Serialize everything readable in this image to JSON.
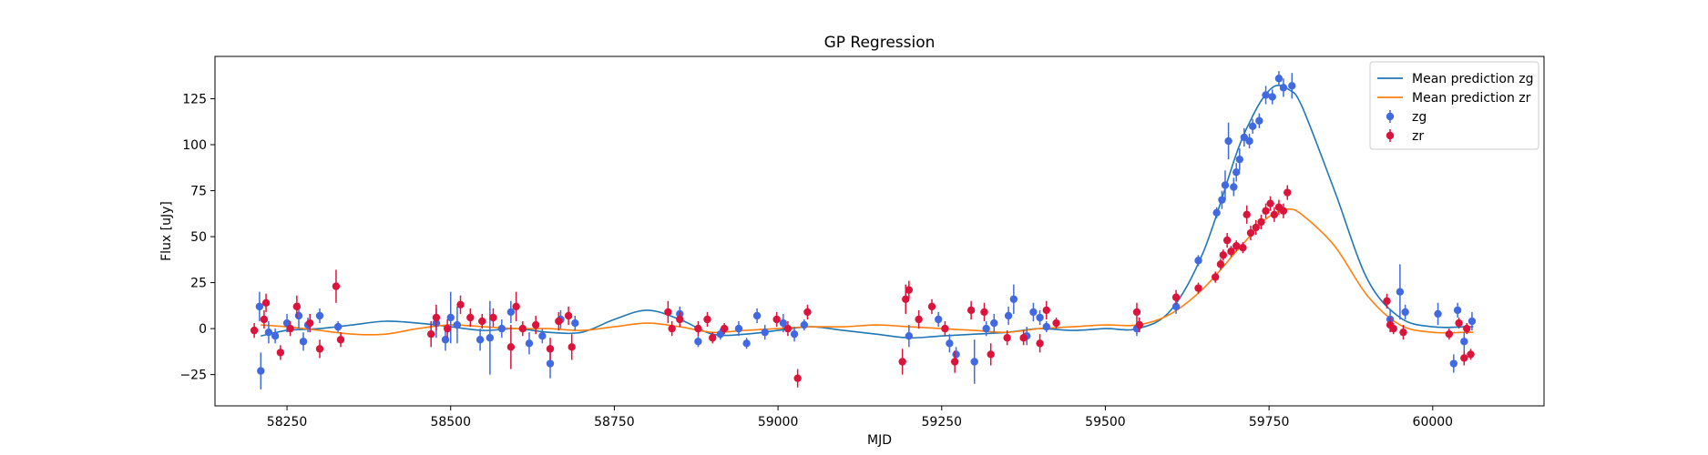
{
  "chart_data": {
    "type": "scatter",
    "title": "GP Regression",
    "xlabel": "MJD",
    "ylabel": "Flux [uJy]",
    "xlim": [
      58140,
      60170
    ],
    "ylim": [
      -42,
      148
    ],
    "xticks": [
      58250,
      58500,
      58750,
      59000,
      59250,
      59500,
      59750,
      60000
    ],
    "yticks": [
      -25,
      0,
      25,
      50,
      75,
      100,
      125
    ],
    "grid": false,
    "legend_position": "top-right",
    "series": [
      {
        "name": "Mean prediction zg",
        "kind": "line",
        "color": "#1f77b4",
        "x": [
          58210,
          58250,
          58300,
          58350,
          58400,
          58450,
          58500,
          58550,
          58600,
          58650,
          58700,
          58750,
          58800,
          58850,
          58900,
          58950,
          59000,
          59050,
          59100,
          59150,
          59200,
          59250,
          59300,
          59350,
          59400,
          59450,
          59500,
          59550,
          59600,
          59650,
          59700,
          59720,
          59740,
          59760,
          59780,
          59800,
          59850,
          59900,
          59950,
          60000,
          60050,
          60062
        ],
        "y": [
          -4,
          -1,
          0,
          2,
          4,
          3,
          1,
          -1,
          0,
          -2,
          -2,
          5,
          10,
          5,
          -3,
          -3,
          -1,
          1,
          -1,
          -3,
          -5,
          -4,
          -3,
          -2,
          0,
          -1,
          0,
          0,
          10,
          42,
          95,
          112,
          125,
          132,
          130,
          121,
          75,
          27,
          6,
          1,
          1,
          1
        ]
      },
      {
        "name": "Mean prediction zr",
        "kind": "line",
        "color": "#ff7f0e",
        "x": [
          58210,
          58250,
          58300,
          58350,
          58400,
          58450,
          58500,
          58550,
          58600,
          58650,
          58700,
          58750,
          58800,
          58850,
          58900,
          58950,
          59000,
          59050,
          59100,
          59150,
          59200,
          59250,
          59300,
          59350,
          59400,
          59450,
          59500,
          59550,
          59600,
          59650,
          59700,
          59720,
          59740,
          59760,
          59780,
          59800,
          59850,
          59900,
          59950,
          60000,
          60050,
          60062
        ],
        "y": [
          2,
          1,
          -1,
          -3,
          -3,
          0,
          2,
          1,
          0,
          0,
          -1,
          1,
          3,
          1,
          -2,
          -1,
          0,
          1,
          1,
          2,
          1,
          0,
          -1,
          -2,
          0,
          1,
          2,
          2,
          8,
          22,
          42,
          50,
          58,
          63,
          65,
          62,
          45,
          18,
          2,
          -2,
          -2,
          -2
        ]
      },
      {
        "name": "zg",
        "kind": "errorbar",
        "color": "#4169e1",
        "points": [
          {
            "x": 58208,
            "y": 12,
            "err": 8
          },
          {
            "x": 58210,
            "y": -23,
            "err": 10
          },
          {
            "x": 58222,
            "y": -2,
            "err": 6
          },
          {
            "x": 58232,
            "y": -4,
            "err": 4
          },
          {
            "x": 58250,
            "y": 3,
            "err": 5
          },
          {
            "x": 58268,
            "y": 7,
            "err": 7
          },
          {
            "x": 58275,
            "y": -7,
            "err": 5
          },
          {
            "x": 58282,
            "y": 2,
            "err": 4
          },
          {
            "x": 58300,
            "y": 7,
            "err": 4
          },
          {
            "x": 58328,
            "y": 1,
            "err": 3
          },
          {
            "x": 58478,
            "y": 3,
            "err": 8
          },
          {
            "x": 58492,
            "y": -6,
            "err": 6
          },
          {
            "x": 58500,
            "y": 6,
            "err": 14
          },
          {
            "x": 58510,
            "y": 2,
            "err": 10
          },
          {
            "x": 58545,
            "y": -6,
            "err": 6
          },
          {
            "x": 58560,
            "y": -5,
            "err": 20
          },
          {
            "x": 58578,
            "y": 0,
            "err": 5
          },
          {
            "x": 58592,
            "y": 9,
            "err": 6
          },
          {
            "x": 58620,
            "y": -8,
            "err": 6
          },
          {
            "x": 58640,
            "y": -4,
            "err": 4
          },
          {
            "x": 58652,
            "y": -19,
            "err": 8
          },
          {
            "x": 58668,
            "y": 5,
            "err": 5
          },
          {
            "x": 58690,
            "y": 3,
            "err": 4
          },
          {
            "x": 58850,
            "y": 8,
            "err": 4
          },
          {
            "x": 58878,
            "y": -7,
            "err": 3
          },
          {
            "x": 58912,
            "y": -3,
            "err": 3
          },
          {
            "x": 58940,
            "y": 0,
            "err": 4
          },
          {
            "x": 58952,
            "y": -8,
            "err": 3
          },
          {
            "x": 58968,
            "y": 7,
            "err": 4
          },
          {
            "x": 58980,
            "y": -2,
            "err": 4
          },
          {
            "x": 59008,
            "y": 3,
            "err": 5
          },
          {
            "x": 59025,
            "y": -3,
            "err": 4
          },
          {
            "x": 59040,
            "y": 2,
            "err": 3
          },
          {
            "x": 59200,
            "y": -4,
            "err": 6
          },
          {
            "x": 59245,
            "y": 5,
            "err": 4
          },
          {
            "x": 59262,
            "y": -8,
            "err": 5
          },
          {
            "x": 59272,
            "y": -14,
            "err": 4
          },
          {
            "x": 59300,
            "y": -18,
            "err": 12
          },
          {
            "x": 59318,
            "y": 0,
            "err": 4
          },
          {
            "x": 59330,
            "y": 3,
            "err": 5
          },
          {
            "x": 59352,
            "y": 7,
            "err": 5
          },
          {
            "x": 59360,
            "y": 16,
            "err": 8
          },
          {
            "x": 59380,
            "y": -4,
            "err": 5
          },
          {
            "x": 59390,
            "y": 9,
            "err": 5
          },
          {
            "x": 59400,
            "y": 6,
            "err": 4
          },
          {
            "x": 59410,
            "y": 1,
            "err": 3
          },
          {
            "x": 59548,
            "y": 0,
            "err": 4
          },
          {
            "x": 59608,
            "y": 12,
            "err": 4
          },
          {
            "x": 59642,
            "y": 37,
            "err": 3
          },
          {
            "x": 59670,
            "y": 63,
            "err": 3
          },
          {
            "x": 59678,
            "y": 70,
            "err": 5
          },
          {
            "x": 59683,
            "y": 78,
            "err": 8
          },
          {
            "x": 59688,
            "y": 102,
            "err": 10
          },
          {
            "x": 59696,
            "y": 77,
            "err": 5
          },
          {
            "x": 59700,
            "y": 85,
            "err": 5
          },
          {
            "x": 59705,
            "y": 92,
            "err": 6
          },
          {
            "x": 59712,
            "y": 104,
            "err": 5
          },
          {
            "x": 59720,
            "y": 102,
            "err": 4
          },
          {
            "x": 59725,
            "y": 110,
            "err": 4
          },
          {
            "x": 59735,
            "y": 113,
            "err": 4
          },
          {
            "x": 59745,
            "y": 127,
            "err": 5
          },
          {
            "x": 59755,
            "y": 126,
            "err": 4
          },
          {
            "x": 59765,
            "y": 136,
            "err": 4
          },
          {
            "x": 59772,
            "y": 131,
            "err": 5
          },
          {
            "x": 59785,
            "y": 132,
            "err": 7
          },
          {
            "x": 59935,
            "y": 5,
            "err": 5
          },
          {
            "x": 59950,
            "y": 20,
            "err": 15
          },
          {
            "x": 59958,
            "y": 9,
            "err": 4
          },
          {
            "x": 60008,
            "y": 8,
            "err": 6
          },
          {
            "x": 60032,
            "y": -19,
            "err": 5
          },
          {
            "x": 60038,
            "y": 10,
            "err": 4
          },
          {
            "x": 60048,
            "y": -7,
            "err": 5
          },
          {
            "x": 60060,
            "y": 4,
            "err": 5
          }
        ]
      },
      {
        "name": "zr",
        "kind": "errorbar",
        "color": "#dc143c",
        "points": [
          {
            "x": 58200,
            "y": -1,
            "err": 4
          },
          {
            "x": 58215,
            "y": 5,
            "err": 5
          },
          {
            "x": 58218,
            "y": 14,
            "err": 5
          },
          {
            "x": 58240,
            "y": -13,
            "err": 4
          },
          {
            "x": 58255,
            "y": 0,
            "err": 4
          },
          {
            "x": 58265,
            "y": 12,
            "err": 6
          },
          {
            "x": 58285,
            "y": 3,
            "err": 5
          },
          {
            "x": 58300,
            "y": -11,
            "err": 5
          },
          {
            "x": 58325,
            "y": 23,
            "err": 9
          },
          {
            "x": 58332,
            "y": -6,
            "err": 4
          },
          {
            "x": 58470,
            "y": -3,
            "err": 7
          },
          {
            "x": 58478,
            "y": 6,
            "err": 7
          },
          {
            "x": 58495,
            "y": 0,
            "err": 5
          },
          {
            "x": 58515,
            "y": 13,
            "err": 5
          },
          {
            "x": 58530,
            "y": 6,
            "err": 5
          },
          {
            "x": 58548,
            "y": 4,
            "err": 4
          },
          {
            "x": 58565,
            "y": 6,
            "err": 5
          },
          {
            "x": 58592,
            "y": -10,
            "err": 12
          },
          {
            "x": 58600,
            "y": 12,
            "err": 8
          },
          {
            "x": 58610,
            "y": 0,
            "err": 4
          },
          {
            "x": 58630,
            "y": 2,
            "err": 5
          },
          {
            "x": 58652,
            "y": -11,
            "err": 6
          },
          {
            "x": 58665,
            "y": 4,
            "err": 5
          },
          {
            "x": 58680,
            "y": 7,
            "err": 5
          },
          {
            "x": 58685,
            "y": -10,
            "err": 7
          },
          {
            "x": 58832,
            "y": 9,
            "err": 6
          },
          {
            "x": 58838,
            "y": 0,
            "err": 4
          },
          {
            "x": 58850,
            "y": 5,
            "err": 4
          },
          {
            "x": 58878,
            "y": 0,
            "err": 4
          },
          {
            "x": 58892,
            "y": 5,
            "err": 4
          },
          {
            "x": 58900,
            "y": -5,
            "err": 3
          },
          {
            "x": 58918,
            "y": 0,
            "err": 3
          },
          {
            "x": 58998,
            "y": 5,
            "err": 4
          },
          {
            "x": 59015,
            "y": 0,
            "err": 4
          },
          {
            "x": 59030,
            "y": -27,
            "err": 5
          },
          {
            "x": 59045,
            "y": 9,
            "err": 4
          },
          {
            "x": 59190,
            "y": -18,
            "err": 7
          },
          {
            "x": 59195,
            "y": 16,
            "err": 8
          },
          {
            "x": 59200,
            "y": 21,
            "err": 5
          },
          {
            "x": 59215,
            "y": 5,
            "err": 5
          },
          {
            "x": 59235,
            "y": 12,
            "err": 4
          },
          {
            "x": 59255,
            "y": 0,
            "err": 4
          },
          {
            "x": 59270,
            "y": -18,
            "err": 6
          },
          {
            "x": 59295,
            "y": 10,
            "err": 5
          },
          {
            "x": 59315,
            "y": 9,
            "err": 5
          },
          {
            "x": 59325,
            "y": -14,
            "err": 6
          },
          {
            "x": 59350,
            "y": -5,
            "err": 4
          },
          {
            "x": 59375,
            "y": -5,
            "err": 4
          },
          {
            "x": 59400,
            "y": -8,
            "err": 5
          },
          {
            "x": 59410,
            "y": 10,
            "err": 5
          },
          {
            "x": 59425,
            "y": 3,
            "err": 3
          },
          {
            "x": 59548,
            "y": 9,
            "err": 5
          },
          {
            "x": 59552,
            "y": 2,
            "err": 4
          },
          {
            "x": 59608,
            "y": 17,
            "err": 4
          },
          {
            "x": 59642,
            "y": 22,
            "err": 3
          },
          {
            "x": 59668,
            "y": 28,
            "err": 3
          },
          {
            "x": 59676,
            "y": 35,
            "err": 3
          },
          {
            "x": 59680,
            "y": 40,
            "err": 3
          },
          {
            "x": 59686,
            "y": 48,
            "err": 4
          },
          {
            "x": 59692,
            "y": 42,
            "err": 3
          },
          {
            "x": 59700,
            "y": 45,
            "err": 3
          },
          {
            "x": 59710,
            "y": 44,
            "err": 3
          },
          {
            "x": 59716,
            "y": 62,
            "err": 5
          },
          {
            "x": 59722,
            "y": 52,
            "err": 4
          },
          {
            "x": 59730,
            "y": 55,
            "err": 4
          },
          {
            "x": 59738,
            "y": 58,
            "err": 4
          },
          {
            "x": 59745,
            "y": 64,
            "err": 4
          },
          {
            "x": 59752,
            "y": 68,
            "err": 4
          },
          {
            "x": 59758,
            "y": 62,
            "err": 4
          },
          {
            "x": 59765,
            "y": 66,
            "err": 4
          },
          {
            "x": 59772,
            "y": 64,
            "err": 4
          },
          {
            "x": 59778,
            "y": 74,
            "err": 4
          },
          {
            "x": 59930,
            "y": 15,
            "err": 4
          },
          {
            "x": 59935,
            "y": 2,
            "err": 4
          },
          {
            "x": 59940,
            "y": 0,
            "err": 3
          },
          {
            "x": 59955,
            "y": -2,
            "err": 4
          },
          {
            "x": 60025,
            "y": -3,
            "err": 3
          },
          {
            "x": 60040,
            "y": 3,
            "err": 3
          },
          {
            "x": 60048,
            "y": -16,
            "err": 4
          },
          {
            "x": 60052,
            "y": 0,
            "err": 3
          },
          {
            "x": 60058,
            "y": -14,
            "err": 3
          }
        ]
      }
    ]
  }
}
